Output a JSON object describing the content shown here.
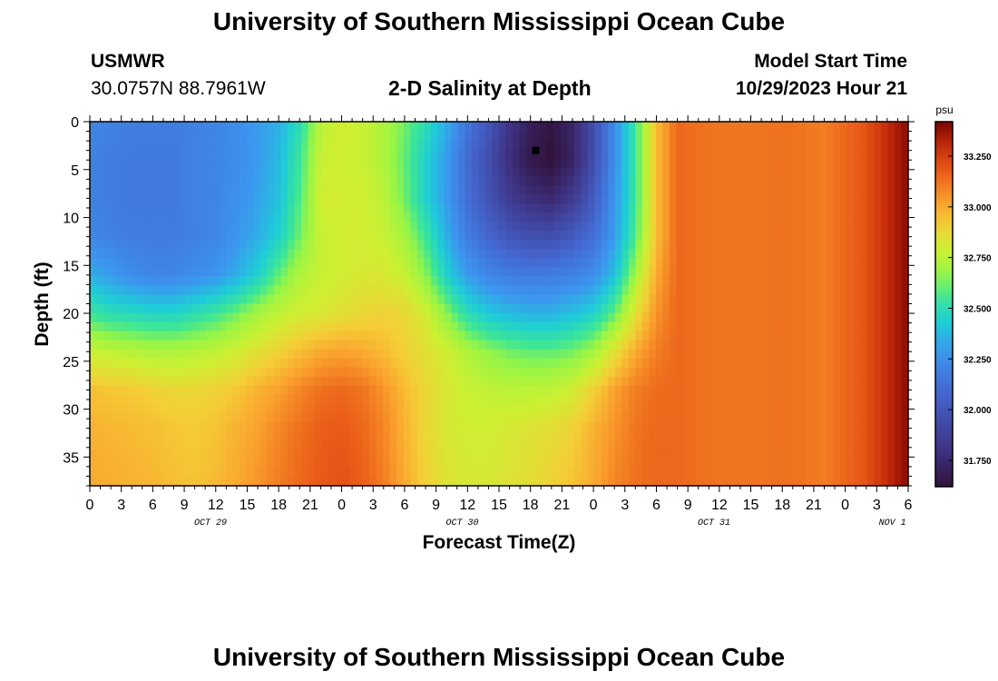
{
  "header": {
    "title": "University of Southern Mississippi Ocean Cube",
    "station": "USMWR",
    "coords": "30.0757N  88.7961W",
    "subtitle": "2-D Salinity at Depth",
    "model_label": "Model Start Time",
    "model_time": "10/29/2023 Hour 21"
  },
  "footer": {
    "title": "University of Southern Mississippi Ocean Cube"
  },
  "chart_data": {
    "type": "heatmap",
    "title": "2-D Salinity at Depth",
    "xlabel": "Forecast Time(Z)",
    "ylabel": "Depth (ft)",
    "x_hours_range": [
      0,
      78
    ],
    "ylim": [
      0,
      38
    ],
    "x_ticks": [
      {
        "h": 0,
        "label": "0"
      },
      {
        "h": 3,
        "label": "3"
      },
      {
        "h": 6,
        "label": "6"
      },
      {
        "h": 9,
        "label": "9"
      },
      {
        "h": 12,
        "label": "12"
      },
      {
        "h": 15,
        "label": "15"
      },
      {
        "h": 18,
        "label": "18"
      },
      {
        "h": 21,
        "label": "21"
      },
      {
        "h": 24,
        "label": "0"
      },
      {
        "h": 27,
        "label": "3"
      },
      {
        "h": 30,
        "label": "6"
      },
      {
        "h": 33,
        "label": "9"
      },
      {
        "h": 36,
        "label": "12"
      },
      {
        "h": 39,
        "label": "15"
      },
      {
        "h": 42,
        "label": "18"
      },
      {
        "h": 45,
        "label": "21"
      },
      {
        "h": 48,
        "label": "0"
      },
      {
        "h": 51,
        "label": "3"
      },
      {
        "h": 54,
        "label": "6"
      },
      {
        "h": 57,
        "label": "9"
      },
      {
        "h": 60,
        "label": "12"
      },
      {
        "h": 63,
        "label": "15"
      },
      {
        "h": 66,
        "label": "18"
      },
      {
        "h": 69,
        "label": "21"
      },
      {
        "h": 72,
        "label": "0"
      },
      {
        "h": 75,
        "label": "3"
      },
      {
        "h": 78,
        "label": "6"
      }
    ],
    "date_labels": [
      {
        "h": 11.5,
        "label": "OCT 29"
      },
      {
        "h": 35.5,
        "label": "OCT 30"
      },
      {
        "h": 59.5,
        "label": "OCT 31"
      },
      {
        "h": 76.5,
        "label": "NOV 1"
      }
    ],
    "y_ticks": [
      0,
      5,
      10,
      15,
      20,
      25,
      30,
      35
    ],
    "colorbar": {
      "unit": "psu",
      "min": 31.62,
      "max": 33.42,
      "ticks": [
        {
          "v": 33.25,
          "label": "33.250"
        },
        {
          "v": 33.0,
          "label": "33.000"
        },
        {
          "v": 32.75,
          "label": "32.750"
        },
        {
          "v": 32.5,
          "label": "32.500"
        },
        {
          "v": 32.25,
          "label": "32.250"
        },
        {
          "v": 32.0,
          "label": "32.000"
        },
        {
          "v": 31.75,
          "label": "31.750"
        }
      ]
    },
    "marker": {
      "h": 42.5,
      "depth": 3
    },
    "salinity_rows": [
      {
        "depth": 0,
        "values": [
          32.22,
          32.2,
          32.18,
          32.18,
          32.18,
          32.2,
          32.22,
          32.25,
          32.3,
          32.35,
          32.5,
          32.75,
          32.8,
          32.78,
          32.72,
          32.62,
          32.5,
          32.35,
          32.15,
          32.0,
          31.82,
          31.7,
          31.65,
          31.74,
          31.95,
          32.25,
          32.55,
          32.95,
          33.15,
          33.13,
          33.12,
          33.12,
          33.12,
          33.13,
          33.12,
          33.1,
          33.15,
          33.2,
          33.3,
          33.4
        ]
      },
      {
        "depth": 4,
        "values": [
          32.2,
          32.18,
          32.17,
          32.17,
          32.17,
          32.2,
          32.22,
          32.25,
          32.3,
          32.38,
          32.55,
          32.78,
          32.8,
          32.78,
          32.72,
          32.6,
          32.45,
          32.3,
          32.1,
          31.95,
          31.78,
          31.66,
          31.62,
          31.72,
          31.95,
          32.25,
          32.55,
          32.95,
          33.15,
          33.13,
          33.12,
          33.12,
          33.12,
          33.13,
          33.12,
          33.1,
          33.15,
          33.2,
          33.3,
          33.4
        ]
      },
      {
        "depth": 8,
        "values": [
          32.2,
          32.18,
          32.17,
          32.17,
          32.17,
          32.2,
          32.22,
          32.26,
          32.32,
          32.4,
          32.58,
          32.8,
          32.8,
          32.8,
          32.75,
          32.62,
          32.45,
          32.3,
          32.12,
          31.98,
          31.85,
          31.78,
          31.75,
          31.85,
          32.02,
          32.28,
          32.55,
          32.95,
          33.15,
          33.13,
          33.12,
          33.12,
          33.12,
          33.13,
          33.12,
          33.1,
          33.15,
          33.2,
          33.3,
          33.4
        ]
      },
      {
        "depth": 12,
        "values": [
          32.22,
          32.2,
          32.18,
          32.18,
          32.18,
          32.2,
          32.22,
          32.28,
          32.35,
          32.45,
          32.62,
          32.78,
          32.8,
          32.8,
          32.78,
          32.7,
          32.55,
          32.35,
          32.18,
          32.08,
          32.0,
          31.96,
          31.96,
          32.02,
          32.12,
          32.3,
          32.58,
          32.95,
          33.15,
          33.13,
          33.12,
          33.12,
          33.12,
          33.13,
          33.12,
          33.1,
          33.15,
          33.2,
          33.3,
          33.4
        ]
      },
      {
        "depth": 16,
        "values": [
          32.35,
          32.3,
          32.25,
          32.22,
          32.22,
          32.25,
          32.28,
          32.35,
          32.45,
          32.6,
          32.72,
          32.78,
          32.8,
          32.82,
          32.82,
          32.78,
          32.65,
          32.45,
          32.3,
          32.22,
          32.18,
          32.17,
          32.18,
          32.2,
          32.25,
          32.4,
          32.7,
          33.0,
          33.15,
          33.13,
          33.12,
          33.12,
          33.12,
          33.13,
          33.12,
          33.1,
          33.15,
          33.2,
          33.3,
          33.4
        ]
      },
      {
        "depth": 20,
        "values": [
          32.55,
          32.5,
          32.48,
          32.46,
          32.46,
          32.5,
          32.55,
          32.62,
          32.7,
          32.76,
          32.8,
          32.82,
          32.85,
          32.88,
          32.9,
          32.88,
          32.8,
          32.65,
          32.5,
          32.42,
          32.38,
          32.36,
          32.36,
          32.4,
          32.45,
          32.6,
          32.85,
          33.05,
          33.15,
          33.13,
          33.12,
          33.12,
          33.12,
          33.13,
          33.12,
          33.1,
          33.15,
          33.2,
          33.3,
          33.4
        ]
      },
      {
        "depth": 24,
        "values": [
          32.78,
          32.76,
          32.74,
          32.72,
          32.72,
          32.74,
          32.76,
          32.8,
          32.85,
          32.9,
          32.95,
          33.0,
          33.02,
          33.0,
          32.96,
          32.9,
          32.85,
          32.8,
          32.72,
          32.66,
          32.62,
          32.6,
          32.6,
          32.62,
          32.7,
          32.85,
          33.0,
          33.1,
          33.15,
          33.13,
          33.12,
          33.12,
          33.12,
          33.13,
          33.12,
          33.1,
          33.15,
          33.2,
          33.3,
          33.4
        ]
      },
      {
        "depth": 28,
        "values": [
          32.95,
          32.93,
          32.92,
          32.9,
          32.88,
          32.88,
          32.9,
          32.93,
          32.98,
          33.02,
          33.08,
          33.13,
          33.15,
          33.12,
          33.05,
          32.96,
          32.88,
          32.82,
          32.78,
          32.76,
          32.75,
          32.75,
          32.76,
          32.8,
          32.9,
          33.02,
          33.1,
          33.14,
          33.15,
          33.13,
          33.12,
          33.12,
          33.12,
          33.13,
          33.12,
          33.1,
          33.15,
          33.2,
          33.3,
          33.4
        ]
      },
      {
        "depth": 32,
        "values": [
          32.98,
          32.97,
          32.96,
          32.95,
          32.93,
          32.92,
          32.94,
          32.98,
          33.02,
          33.08,
          33.13,
          33.17,
          33.18,
          33.15,
          33.08,
          32.98,
          32.88,
          32.82,
          32.8,
          32.8,
          32.82,
          32.84,
          32.86,
          32.9,
          32.98,
          33.05,
          33.12,
          33.15,
          33.15,
          33.13,
          33.12,
          33.12,
          33.12,
          33.13,
          33.12,
          33.1,
          33.15,
          33.2,
          33.3,
          33.4
        ]
      },
      {
        "depth": 38,
        "values": [
          33.0,
          32.99,
          32.98,
          32.97,
          32.95,
          32.94,
          32.96,
          33.0,
          33.05,
          33.1,
          33.15,
          33.18,
          33.2,
          33.17,
          33.1,
          33.0,
          32.9,
          32.84,
          32.82,
          32.82,
          32.84,
          32.86,
          32.9,
          32.94,
          33.0,
          33.08,
          33.13,
          33.15,
          33.15,
          33.13,
          33.12,
          33.12,
          33.12,
          33.13,
          33.12,
          33.1,
          33.15,
          33.2,
          33.3,
          33.4
        ]
      }
    ]
  }
}
